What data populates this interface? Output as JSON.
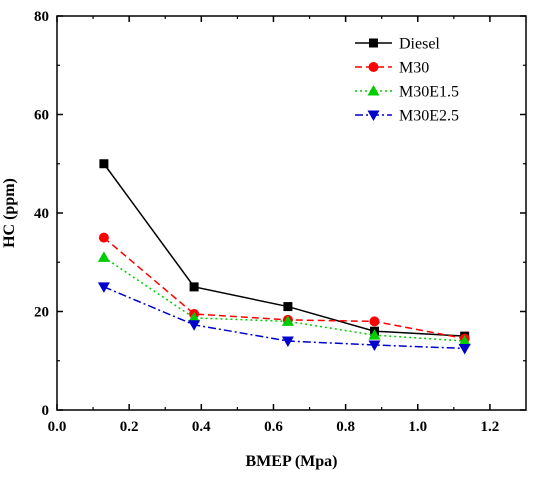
{
  "chart_data": {
    "type": "line",
    "title": "",
    "xlabel": "BMEP (Mpa)",
    "ylabel": "HC (ppm)",
    "xlim": [
      0.0,
      1.3
    ],
    "ylim": [
      0,
      80
    ],
    "x_ticks": [
      "0.0",
      "0.2",
      "0.4",
      "0.6",
      "0.8",
      "1.0",
      "1.2"
    ],
    "y_ticks": [
      "0",
      "20",
      "40",
      "60",
      "80"
    ],
    "grid": false,
    "legend_position": "top-right",
    "x": [
      0.13,
      0.38,
      0.64,
      0.88,
      1.13
    ],
    "series": [
      {
        "name": "Diesel",
        "color": "#000000",
        "marker": "square",
        "dash": "solid",
        "values": [
          50,
          25,
          21,
          16,
          15
        ]
      },
      {
        "name": "M30",
        "color": "#ff0000",
        "marker": "circle",
        "dash": "dashed",
        "values": [
          35,
          19.5,
          18.3,
          18,
          14.5
        ]
      },
      {
        "name": "M30E1.5",
        "color": "#00cc00",
        "marker": "triangle-up",
        "dash": "dotted",
        "values": [
          31,
          18.7,
          18,
          15.2,
          14
        ]
      },
      {
        "name": "M30E2.5",
        "color": "#0000cc",
        "marker": "triangle-down",
        "dash": "dashdot",
        "values": [
          25,
          17.3,
          14,
          13.2,
          12.5
        ]
      }
    ]
  }
}
